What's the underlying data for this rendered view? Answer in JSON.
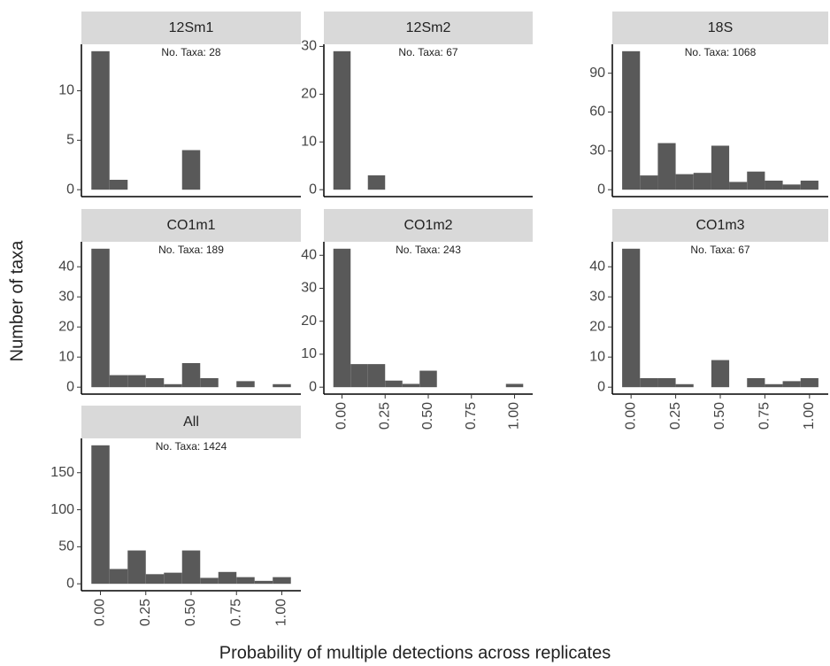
{
  "chart_data": [
    {
      "type": "histogram",
      "title": "12Sm1",
      "annotation": "No. Taxa: 28",
      "bins": [
        -0.05,
        0.05,
        0.15,
        0.25,
        0.35,
        0.45,
        0.55,
        0.65,
        0.75,
        0.85,
        0.95,
        1.05
      ],
      "values": [
        14,
        1,
        0,
        0,
        0,
        4,
        0,
        0,
        0,
        0,
        0
      ],
      "color": "#595959",
      "xlim": [
        -0.105,
        1.105
      ],
      "ylim": [
        -0.7,
        14.7
      ],
      "yticks": [
        0,
        5,
        10
      ]
    },
    {
      "type": "histogram",
      "title": "12Sm2",
      "annotation": "No. Taxa: 67",
      "bins": [
        -0.05,
        0.05,
        0.15,
        0.25,
        0.35,
        0.45,
        0.55,
        0.65,
        0.75,
        0.85,
        0.95,
        1.05
      ],
      "values": [
        29,
        0,
        3,
        0,
        0,
        0,
        0,
        0,
        0,
        0,
        0
      ],
      "color": "#595959",
      "xlim": [
        -0.105,
        1.105
      ],
      "ylim": [
        -1.45,
        30.45
      ],
      "yticks": [
        0,
        10,
        20,
        30
      ]
    },
    {
      "type": "histogram",
      "title": "18S",
      "annotation": "No. Taxa: 1068",
      "bins": [
        -0.05,
        0.05,
        0.15,
        0.25,
        0.35,
        0.45,
        0.55,
        0.65,
        0.75,
        0.85,
        0.95,
        1.05
      ],
      "values": [
        107,
        11,
        36,
        12,
        13,
        34,
        6,
        14,
        7,
        4,
        7
      ],
      "color": "#595959",
      "xlim": [
        -0.105,
        1.105
      ],
      "ylim": [
        -5.35,
        112.35
      ],
      "yticks": [
        0,
        30,
        60,
        90
      ]
    },
    {
      "type": "histogram",
      "title": "CO1m1",
      "annotation": "No. Taxa: 189",
      "bins": [
        -0.05,
        0.05,
        0.15,
        0.25,
        0.35,
        0.45,
        0.55,
        0.65,
        0.75,
        0.85,
        0.95,
        1.05
      ],
      "values": [
        46,
        4,
        4,
        3,
        1,
        8,
        3,
        0,
        2,
        0,
        1
      ],
      "color": "#595959",
      "xlim": [
        -0.105,
        1.105
      ],
      "ylim": [
        -2.3,
        48.3
      ],
      "yticks": [
        0,
        10,
        20,
        30,
        40
      ]
    },
    {
      "type": "histogram",
      "title": "CO1m2",
      "annotation": "No. Taxa: 243",
      "bins": [
        -0.05,
        0.05,
        0.15,
        0.25,
        0.35,
        0.45,
        0.55,
        0.65,
        0.75,
        0.85,
        0.95,
        1.05
      ],
      "values": [
        42,
        7,
        7,
        2,
        1,
        5,
        0,
        0,
        0,
        0,
        1
      ],
      "color": "#595959",
      "xlim": [
        -0.105,
        1.105
      ],
      "ylim": [
        -2.1,
        44.1
      ],
      "yticks": [
        0,
        10,
        20,
        30,
        40
      ],
      "xticks": [
        {
          "value": 0,
          "label": "0.00"
        },
        {
          "value": 0.25,
          "label": "0.25"
        },
        {
          "value": 0.5,
          "label": "0.50"
        },
        {
          "value": 0.75,
          "label": "0.75"
        },
        {
          "value": 1,
          "label": "1.00"
        }
      ]
    },
    {
      "type": "histogram",
      "title": "CO1m3",
      "annotation": "No. Taxa: 67",
      "bins": [
        -0.05,
        0.05,
        0.15,
        0.25,
        0.35,
        0.45,
        0.55,
        0.65,
        0.75,
        0.85,
        0.95,
        1.05
      ],
      "values": [
        46,
        3,
        3,
        1,
        0,
        9,
        0,
        3,
        1,
        2,
        3
      ],
      "color": "#595959",
      "xlim": [
        -0.105,
        1.105
      ],
      "ylim": [
        -2.3,
        48.3
      ],
      "yticks": [
        0,
        10,
        20,
        30,
        40
      ],
      "xticks": [
        {
          "value": 0,
          "label": "0.00"
        },
        {
          "value": 0.25,
          "label": "0.25"
        },
        {
          "value": 0.5,
          "label": "0.50"
        },
        {
          "value": 0.75,
          "label": "0.75"
        },
        {
          "value": 1,
          "label": "1.00"
        }
      ]
    },
    {
      "type": "histogram",
      "title": "All",
      "annotation": "No. Taxa: 1424",
      "bins": [
        -0.05,
        0.05,
        0.15,
        0.25,
        0.35,
        0.45,
        0.55,
        0.65,
        0.75,
        0.85,
        0.95,
        1.05
      ],
      "values": [
        187,
        20,
        45,
        13,
        15,
        45,
        8,
        16,
        9,
        4,
        9
      ],
      "color": "#595959",
      "xlim": [
        -0.105,
        1.105
      ],
      "ylim": [
        -9.35,
        196.35
      ],
      "yticks": [
        0,
        50,
        100,
        150
      ],
      "xticks": [
        {
          "value": 0,
          "label": "0.00"
        },
        {
          "value": 0.25,
          "label": "0.25"
        },
        {
          "value": 0.5,
          "label": "0.50"
        },
        {
          "value": 0.75,
          "label": "0.75"
        },
        {
          "value": 1,
          "label": "1.00"
        }
      ]
    }
  ],
  "xlabel": "Probability of multiple detections across replicates",
  "ylabel": "Number of taxa"
}
